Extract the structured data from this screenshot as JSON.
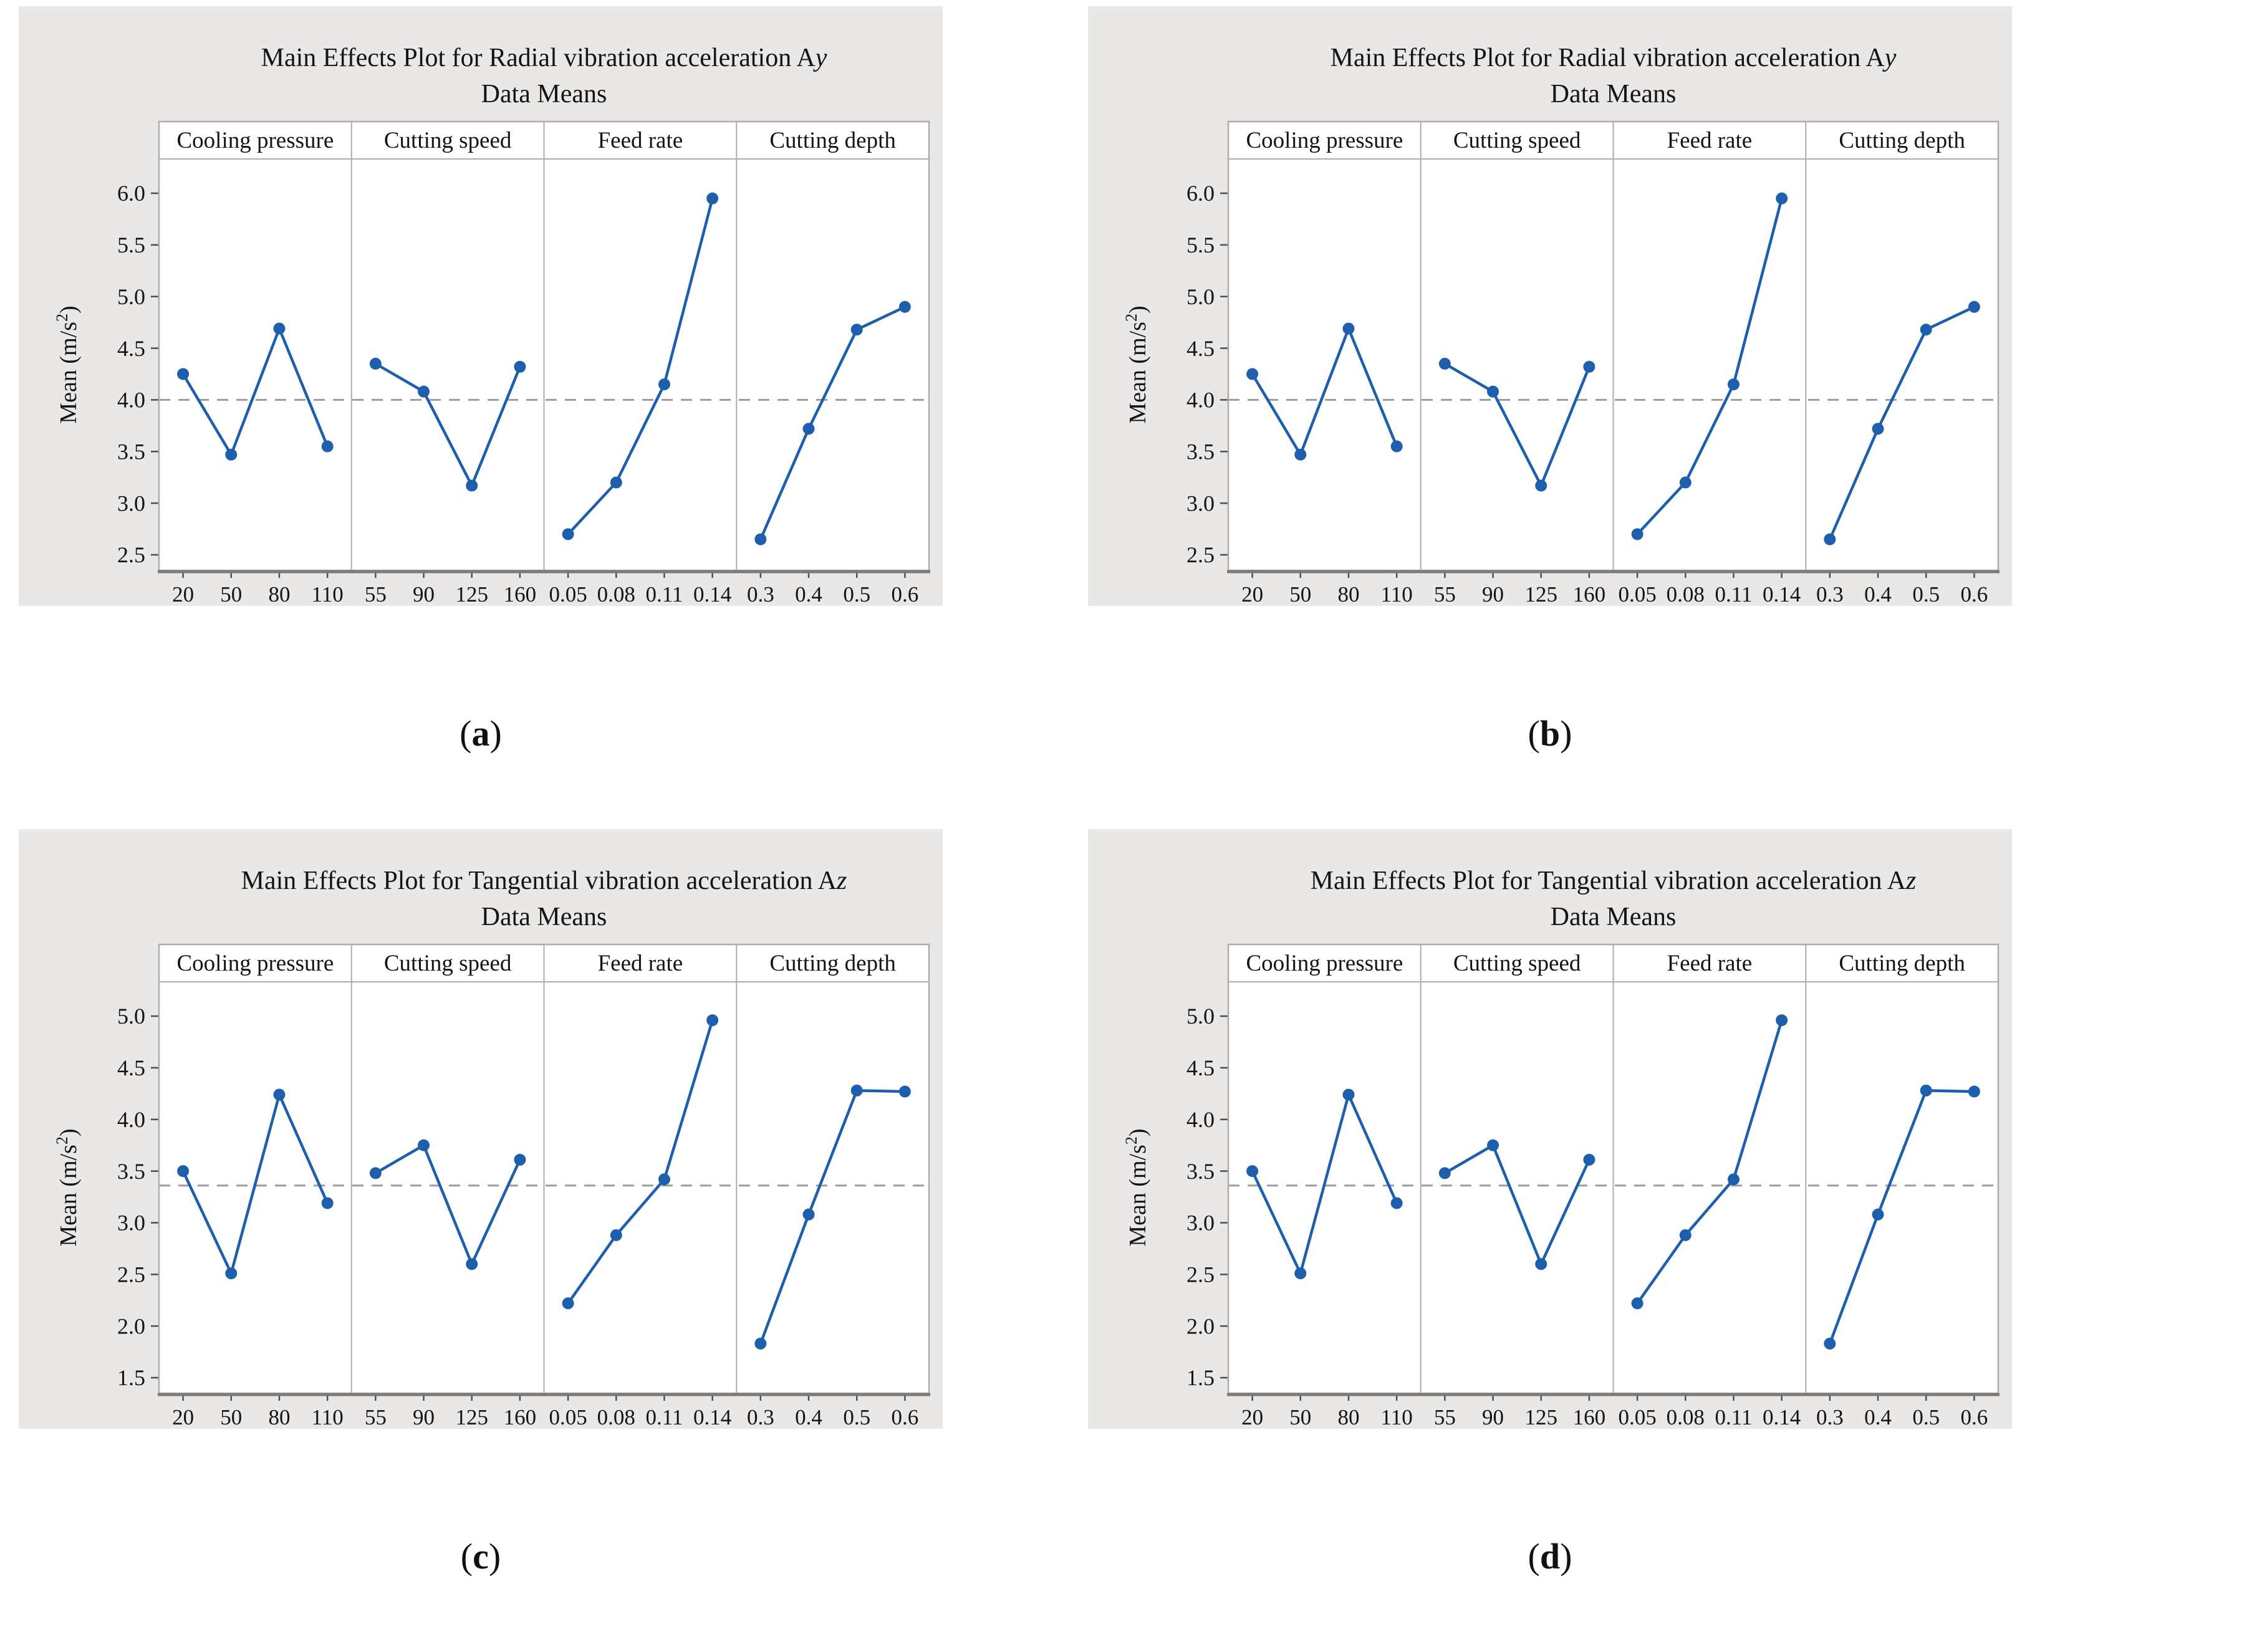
{
  "style": {
    "card_background": "#e9e8e6",
    "plot_background": "#ffffff",
    "series_color": "#1e5fad",
    "mean_line_color": "#9c9c9c",
    "border_color": "#adadad",
    "axis_line_color": "#7a7a7a",
    "tick_color": "#4d4d4d",
    "text_color": "#141414"
  },
  "captions": [
    {
      "open": "(",
      "letter": "a",
      "close": ")"
    },
    {
      "open": "(",
      "letter": "b",
      "close": ")"
    },
    {
      "open": "(",
      "letter": "c",
      "close": ")"
    },
    {
      "open": "(",
      "letter": "d",
      "close": ")"
    }
  ],
  "chart_data": [
    {
      "id": "a",
      "type": "line",
      "title_main": "Main Effects Plot for Radial vibration acceleration A",
      "title_italic_suffix": "y",
      "subtitle": "Data Means",
      "ylabel": {
        "pre": "Mean (m/s",
        "sup": "2",
        "post": ")"
      },
      "ylim": [
        2.5,
        6.0
      ],
      "yticks": [
        "6.0",
        "5.5",
        "5.0",
        "4.5",
        "4.0",
        "3.5",
        "3.0",
        "2.5"
      ],
      "mean_line": 4.0,
      "grid": false,
      "panels": [
        {
          "label": "Cooling pressure",
          "categories": [
            "20",
            "50",
            "80",
            "110"
          ],
          "values": [
            4.25,
            3.47,
            4.69,
            3.55
          ]
        },
        {
          "label": "Cutting speed",
          "categories": [
            "55",
            "90",
            "125",
            "160"
          ],
          "values": [
            4.35,
            4.08,
            3.17,
            4.32
          ]
        },
        {
          "label": "Feed rate",
          "categories": [
            "0.05",
            "0.08",
            "0.11",
            "0.14"
          ],
          "values": [
            2.7,
            3.2,
            4.15,
            5.95
          ]
        },
        {
          "label": "Cutting depth",
          "categories": [
            "0.3",
            "0.4",
            "0.5",
            "0.6"
          ],
          "values": [
            2.65,
            3.72,
            4.68,
            4.9
          ]
        }
      ]
    },
    {
      "id": "b",
      "type": "line",
      "title_main": "Main Effects Plot for Radial vibration acceleration A",
      "title_italic_suffix": "y",
      "subtitle": "Data Means",
      "ylabel": {
        "pre": "Mean (m/s",
        "sup": "2",
        "post": ")"
      },
      "ylim": [
        2.5,
        6.0
      ],
      "yticks": [
        "6.0",
        "5.5",
        "5.0",
        "4.5",
        "4.0",
        "3.5",
        "3.0",
        "2.5"
      ],
      "mean_line": 4.0,
      "grid": false,
      "panels": [
        {
          "label": "Cooling pressure",
          "categories": [
            "20",
            "50",
            "80",
            "110"
          ],
          "values": [
            4.25,
            3.47,
            4.69,
            3.55
          ]
        },
        {
          "label": "Cutting speed",
          "categories": [
            "55",
            "90",
            "125",
            "160"
          ],
          "values": [
            4.35,
            4.08,
            3.17,
            4.32
          ]
        },
        {
          "label": "Feed rate",
          "categories": [
            "0.05",
            "0.08",
            "0.11",
            "0.14"
          ],
          "values": [
            2.7,
            3.2,
            4.15,
            5.95
          ]
        },
        {
          "label": "Cutting depth",
          "categories": [
            "0.3",
            "0.4",
            "0.5",
            "0.6"
          ],
          "values": [
            2.65,
            3.72,
            4.68,
            4.9
          ]
        }
      ]
    },
    {
      "id": "c",
      "type": "line",
      "title_main": "Main Effects Plot for Tangential vibration acceleration A",
      "title_italic_suffix": "z",
      "subtitle": "Data Means",
      "ylabel": {
        "pre": "Mean (m/s",
        "sup": "2",
        "post": ")"
      },
      "ylim": [
        1.5,
        5.0
      ],
      "yticks": [
        "5.0",
        "4.5",
        "4.0",
        "3.5",
        "3.0",
        "2.5",
        "2.0",
        "1.5"
      ],
      "mean_line": 3.36,
      "grid": false,
      "panels": [
        {
          "label": "Cooling pressure",
          "categories": [
            "20",
            "50",
            "80",
            "110"
          ],
          "values": [
            3.5,
            2.51,
            4.24,
            3.19
          ]
        },
        {
          "label": "Cutting speed",
          "categories": [
            "55",
            "90",
            "125",
            "160"
          ],
          "values": [
            3.48,
            3.75,
            2.6,
            3.61
          ]
        },
        {
          "label": "Feed rate",
          "categories": [
            "0.05",
            "0.08",
            "0.11",
            "0.14"
          ],
          "values": [
            2.22,
            2.88,
            3.42,
            4.96
          ]
        },
        {
          "label": "Cutting depth",
          "categories": [
            "0.3",
            "0.4",
            "0.5",
            "0.6"
          ],
          "values": [
            1.83,
            3.08,
            4.28,
            4.27
          ]
        }
      ]
    },
    {
      "id": "d",
      "type": "line",
      "title_main": "Main Effects Plot for Tangential vibration acceleration A",
      "title_italic_suffix": "z",
      "subtitle": "Data Means",
      "ylabel": {
        "pre": "Mean (m/s",
        "sup": "2",
        "post": ")"
      },
      "ylim": [
        1.5,
        5.0
      ],
      "yticks": [
        "5.0",
        "4.5",
        "4.0",
        "3.5",
        "3.0",
        "2.5",
        "2.0",
        "1.5"
      ],
      "mean_line": 3.36,
      "grid": false,
      "panels": [
        {
          "label": "Cooling pressure",
          "categories": [
            "20",
            "50",
            "80",
            "110"
          ],
          "values": [
            3.5,
            2.51,
            4.24,
            3.19
          ]
        },
        {
          "label": "Cutting speed",
          "categories": [
            "55",
            "90",
            "125",
            "160"
          ],
          "values": [
            3.48,
            3.75,
            2.6,
            3.61
          ]
        },
        {
          "label": "Feed rate",
          "categories": [
            "0.05",
            "0.08",
            "0.11",
            "0.14"
          ],
          "values": [
            2.22,
            2.88,
            3.42,
            4.96
          ]
        },
        {
          "label": "Cutting depth",
          "categories": [
            "0.3",
            "0.4",
            "0.5",
            "0.6"
          ],
          "values": [
            1.83,
            3.08,
            4.28,
            4.27
          ]
        }
      ]
    }
  ]
}
